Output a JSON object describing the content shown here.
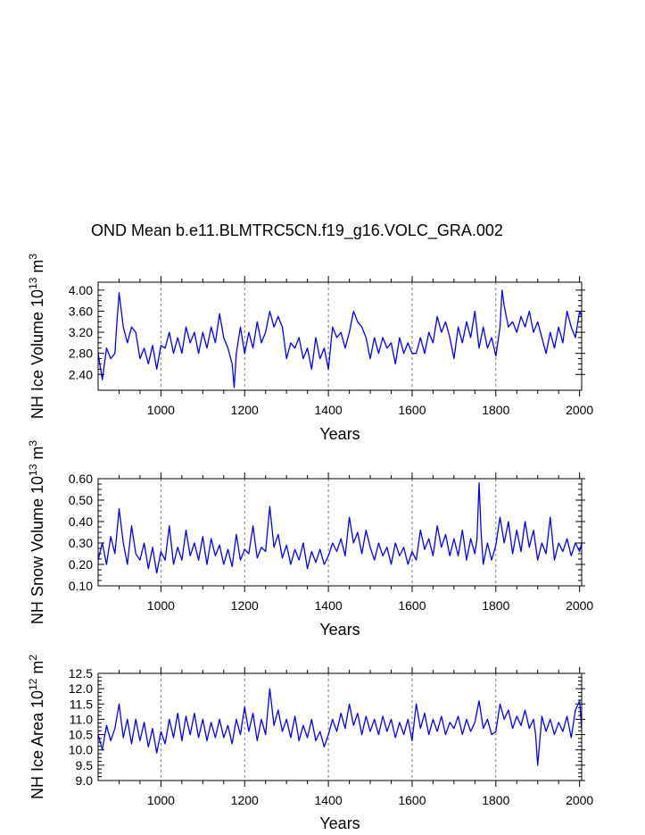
{
  "title": "OND Mean b.e11.BLMTRC5CN.f19_g16.VOLC_GRA.002",
  "colors": {
    "series": "#0000ff",
    "axis": "#000000",
    "gridline": "#777777"
  },
  "chart_data": [
    {
      "type": "line",
      "xlabel": "Years",
      "ylabel": "NH Ice Volume 10",
      "ylabel_exp": "13",
      "ylabel_unit": " m",
      "ylabel_unit_exp": "3",
      "xlim": [
        850,
        2005
      ],
      "ylim": [
        2.1,
        4.15
      ],
      "xticks": [
        1000,
        1200,
        1400,
        1600,
        1800,
        2000
      ],
      "yticks": [
        2.4,
        2.8,
        3.2,
        3.6,
        4.0
      ],
      "ytick_labels": [
        "2.40",
        "2.80",
        "3.20",
        "3.60",
        "4.00"
      ],
      "series": [
        {
          "x": [
            850,
            860,
            870,
            880,
            890,
            895,
            900,
            910,
            920,
            930,
            940,
            950,
            960,
            970,
            980,
            990,
            1000,
            1010,
            1020,
            1030,
            1040,
            1050,
            1060,
            1070,
            1080,
            1090,
            1100,
            1110,
            1120,
            1130,
            1140,
            1150,
            1160,
            1170,
            1175,
            1180,
            1190,
            1200,
            1210,
            1220,
            1230,
            1240,
            1250,
            1260,
            1270,
            1280,
            1290,
            1300,
            1310,
            1320,
            1330,
            1340,
            1350,
            1360,
            1370,
            1380,
            1390,
            1400,
            1410,
            1420,
            1430,
            1440,
            1450,
            1460,
            1470,
            1480,
            1490,
            1500,
            1510,
            1520,
            1530,
            1540,
            1550,
            1560,
            1570,
            1580,
            1590,
            1600,
            1610,
            1620,
            1630,
            1640,
            1650,
            1660,
            1670,
            1680,
            1690,
            1700,
            1710,
            1720,
            1730,
            1740,
            1750,
            1760,
            1770,
            1780,
            1790,
            1800,
            1810,
            1815,
            1820,
            1830,
            1840,
            1850,
            1860,
            1870,
            1880,
            1890,
            1900,
            1910,
            1920,
            1930,
            1940,
            1950,
            1960,
            1970,
            1980,
            1990,
            2000,
            2005
          ],
          "y": [
            2.8,
            2.3,
            2.9,
            2.7,
            2.8,
            3.4,
            3.95,
            3.3,
            3.0,
            3.3,
            3.2,
            2.7,
            2.9,
            2.6,
            2.95,
            2.5,
            2.95,
            2.9,
            3.2,
            2.8,
            3.1,
            2.8,
            3.3,
            3.0,
            3.2,
            2.8,
            3.2,
            2.9,
            3.3,
            3.0,
            3.55,
            3.1,
            2.9,
            2.6,
            2.15,
            2.8,
            3.3,
            2.8,
            3.2,
            2.9,
            3.4,
            3.0,
            3.2,
            3.6,
            3.3,
            3.5,
            3.3,
            2.7,
            3.0,
            2.9,
            3.1,
            2.7,
            2.9,
            2.5,
            3.1,
            2.7,
            2.9,
            2.5,
            3.3,
            3.1,
            3.2,
            2.9,
            3.2,
            3.6,
            3.4,
            3.3,
            3.1,
            2.7,
            3.1,
            2.8,
            3.1,
            2.9,
            3.0,
            2.6,
            3.1,
            2.8,
            3.0,
            2.8,
            2.8,
            3.1,
            2.8,
            3.2,
            3.0,
            3.5,
            3.2,
            3.4,
            3.1,
            2.7,
            3.3,
            3.0,
            3.4,
            3.1,
            3.6,
            2.9,
            3.3,
            2.9,
            3.1,
            2.75,
            3.3,
            4.0,
            3.7,
            3.3,
            3.4,
            3.2,
            3.5,
            3.3,
            3.6,
            3.2,
            3.4,
            3.1,
            2.8,
            3.2,
            2.9,
            3.3,
            3.0,
            3.6,
            3.3,
            3.1,
            3.6,
            3.5
          ]
        }
      ]
    },
    {
      "type": "line",
      "xlabel": "Years",
      "ylabel": "NH Snow Volume 10",
      "ylabel_exp": "13",
      "ylabel_unit": " m",
      "ylabel_unit_exp": "3",
      "xlim": [
        850,
        2005
      ],
      "ylim": [
        0.1,
        0.6
      ],
      "xticks": [
        1000,
        1200,
        1400,
        1600,
        1800,
        2000
      ],
      "yticks": [
        0.1,
        0.2,
        0.3,
        0.4,
        0.5,
        0.6
      ],
      "ytick_labels": [
        "0.10",
        "0.20",
        "0.30",
        "0.40",
        "0.50",
        "0.60"
      ],
      "series": [
        {
          "x": [
            850,
            860,
            870,
            880,
            890,
            895,
            900,
            910,
            920,
            930,
            940,
            950,
            960,
            970,
            980,
            990,
            1000,
            1010,
            1020,
            1030,
            1040,
            1050,
            1060,
            1070,
            1080,
            1090,
            1100,
            1110,
            1120,
            1130,
            1140,
            1150,
            1160,
            1170,
            1180,
            1190,
            1200,
            1210,
            1220,
            1230,
            1240,
            1250,
            1260,
            1270,
            1280,
            1290,
            1300,
            1310,
            1320,
            1330,
            1340,
            1350,
            1360,
            1370,
            1380,
            1390,
            1400,
            1410,
            1420,
            1430,
            1440,
            1450,
            1460,
            1470,
            1480,
            1490,
            1500,
            1510,
            1520,
            1530,
            1540,
            1550,
            1560,
            1570,
            1580,
            1590,
            1600,
            1610,
            1620,
            1630,
            1640,
            1650,
            1660,
            1670,
            1680,
            1690,
            1700,
            1710,
            1720,
            1730,
            1740,
            1750,
            1755,
            1760,
            1765,
            1770,
            1780,
            1790,
            1800,
            1810,
            1820,
            1830,
            1840,
            1850,
            1860,
            1870,
            1880,
            1890,
            1900,
            1910,
            1920,
            1930,
            1940,
            1950,
            1960,
            1970,
            1980,
            1990,
            2000,
            2005
          ],
          "y": [
            0.22,
            0.3,
            0.2,
            0.33,
            0.25,
            0.35,
            0.46,
            0.3,
            0.2,
            0.38,
            0.25,
            0.22,
            0.3,
            0.18,
            0.28,
            0.16,
            0.26,
            0.22,
            0.38,
            0.2,
            0.28,
            0.22,
            0.36,
            0.24,
            0.3,
            0.22,
            0.33,
            0.2,
            0.32,
            0.24,
            0.29,
            0.2,
            0.27,
            0.19,
            0.34,
            0.22,
            0.27,
            0.25,
            0.38,
            0.23,
            0.28,
            0.26,
            0.47,
            0.28,
            0.34,
            0.23,
            0.29,
            0.2,
            0.27,
            0.22,
            0.3,
            0.18,
            0.26,
            0.21,
            0.27,
            0.2,
            0.24,
            0.3,
            0.26,
            0.32,
            0.24,
            0.42,
            0.3,
            0.35,
            0.25,
            0.36,
            0.28,
            0.22,
            0.3,
            0.24,
            0.28,
            0.2,
            0.3,
            0.24,
            0.28,
            0.2,
            0.26,
            0.22,
            0.36,
            0.27,
            0.32,
            0.24,
            0.38,
            0.28,
            0.34,
            0.24,
            0.32,
            0.24,
            0.36,
            0.22,
            0.32,
            0.25,
            0.32,
            0.58,
            0.34,
            0.2,
            0.3,
            0.22,
            0.29,
            0.42,
            0.3,
            0.4,
            0.25,
            0.36,
            0.26,
            0.4,
            0.28,
            0.36,
            0.22,
            0.3,
            0.25,
            0.42,
            0.22,
            0.3,
            0.26,
            0.32,
            0.24,
            0.3,
            0.26,
            0.3
          ]
        }
      ]
    },
    {
      "type": "line",
      "xlabel": "Years",
      "ylabel": "NH Ice Area 10",
      "ylabel_exp": "12",
      "ylabel_unit": " m",
      "ylabel_unit_exp": "2",
      "xlim": [
        850,
        2005
      ],
      "ylim": [
        9.0,
        12.5
      ],
      "xticks": [
        1000,
        1200,
        1400,
        1600,
        1800,
        2000
      ],
      "yticks": [
        9.0,
        9.5,
        10.0,
        10.5,
        11.0,
        11.5,
        12.0,
        12.5
      ],
      "ytick_labels": [
        "9.0",
        "9.5",
        "10.0",
        "10.5",
        "11.0",
        "11.5",
        "12.0",
        "12.5"
      ],
      "series": [
        {
          "x": [
            850,
            860,
            870,
            880,
            890,
            900,
            910,
            920,
            930,
            940,
            950,
            960,
            970,
            980,
            990,
            1000,
            1010,
            1020,
            1030,
            1040,
            1050,
            1060,
            1070,
            1080,
            1090,
            1100,
            1110,
            1120,
            1130,
            1140,
            1150,
            1160,
            1170,
            1180,
            1190,
            1200,
            1210,
            1220,
            1230,
            1240,
            1250,
            1260,
            1270,
            1280,
            1290,
            1300,
            1310,
            1320,
            1330,
            1340,
            1350,
            1360,
            1370,
            1380,
            1390,
            1400,
            1410,
            1420,
            1430,
            1440,
            1450,
            1460,
            1470,
            1480,
            1490,
            1500,
            1510,
            1520,
            1530,
            1540,
            1550,
            1560,
            1570,
            1580,
            1590,
            1600,
            1610,
            1620,
            1630,
            1640,
            1650,
            1660,
            1670,
            1680,
            1690,
            1700,
            1710,
            1720,
            1730,
            1740,
            1750,
            1760,
            1770,
            1780,
            1790,
            1800,
            1810,
            1820,
            1830,
            1840,
            1850,
            1860,
            1870,
            1880,
            1890,
            1895,
            1900,
            1910,
            1920,
            1930,
            1940,
            1950,
            1960,
            1970,
            1980,
            1990,
            2000,
            2005
          ],
          "y": [
            10.5,
            10.0,
            10.8,
            10.3,
            10.7,
            11.5,
            10.4,
            11.0,
            10.2,
            11.0,
            10.3,
            10.9,
            10.1,
            10.7,
            9.9,
            10.6,
            10.2,
            11.0,
            10.4,
            11.2,
            10.3,
            11.1,
            10.5,
            11.2,
            10.4,
            11.0,
            10.3,
            10.9,
            10.4,
            11.0,
            10.4,
            10.8,
            10.2,
            11.0,
            10.5,
            11.4,
            10.6,
            11.2,
            10.3,
            11.0,
            10.5,
            12.0,
            10.8,
            11.3,
            10.6,
            11.0,
            10.4,
            11.1,
            10.3,
            10.8,
            10.4,
            11.0,
            10.3,
            10.6,
            10.1,
            10.5,
            11.0,
            10.6,
            11.2,
            10.7,
            11.5,
            10.8,
            11.2,
            10.5,
            11.1,
            10.6,
            11.0,
            10.5,
            11.1,
            10.6,
            11.0,
            10.4,
            10.9,
            10.5,
            11.0,
            10.3,
            11.5,
            10.7,
            11.2,
            10.5,
            11.0,
            10.6,
            11.1,
            10.5,
            10.9,
            10.7,
            11.1,
            10.5,
            11.0,
            10.6,
            10.9,
            11.6,
            10.7,
            11.0,
            10.5,
            10.6,
            11.5,
            11.0,
            11.3,
            10.7,
            11.1,
            10.8,
            11.3,
            10.7,
            11.0,
            10.5,
            9.5,
            11.1,
            10.6,
            11.0,
            10.5,
            10.9,
            10.6,
            11.1,
            10.4,
            11.3,
            11.6,
            10.7
          ]
        }
      ]
    }
  ]
}
